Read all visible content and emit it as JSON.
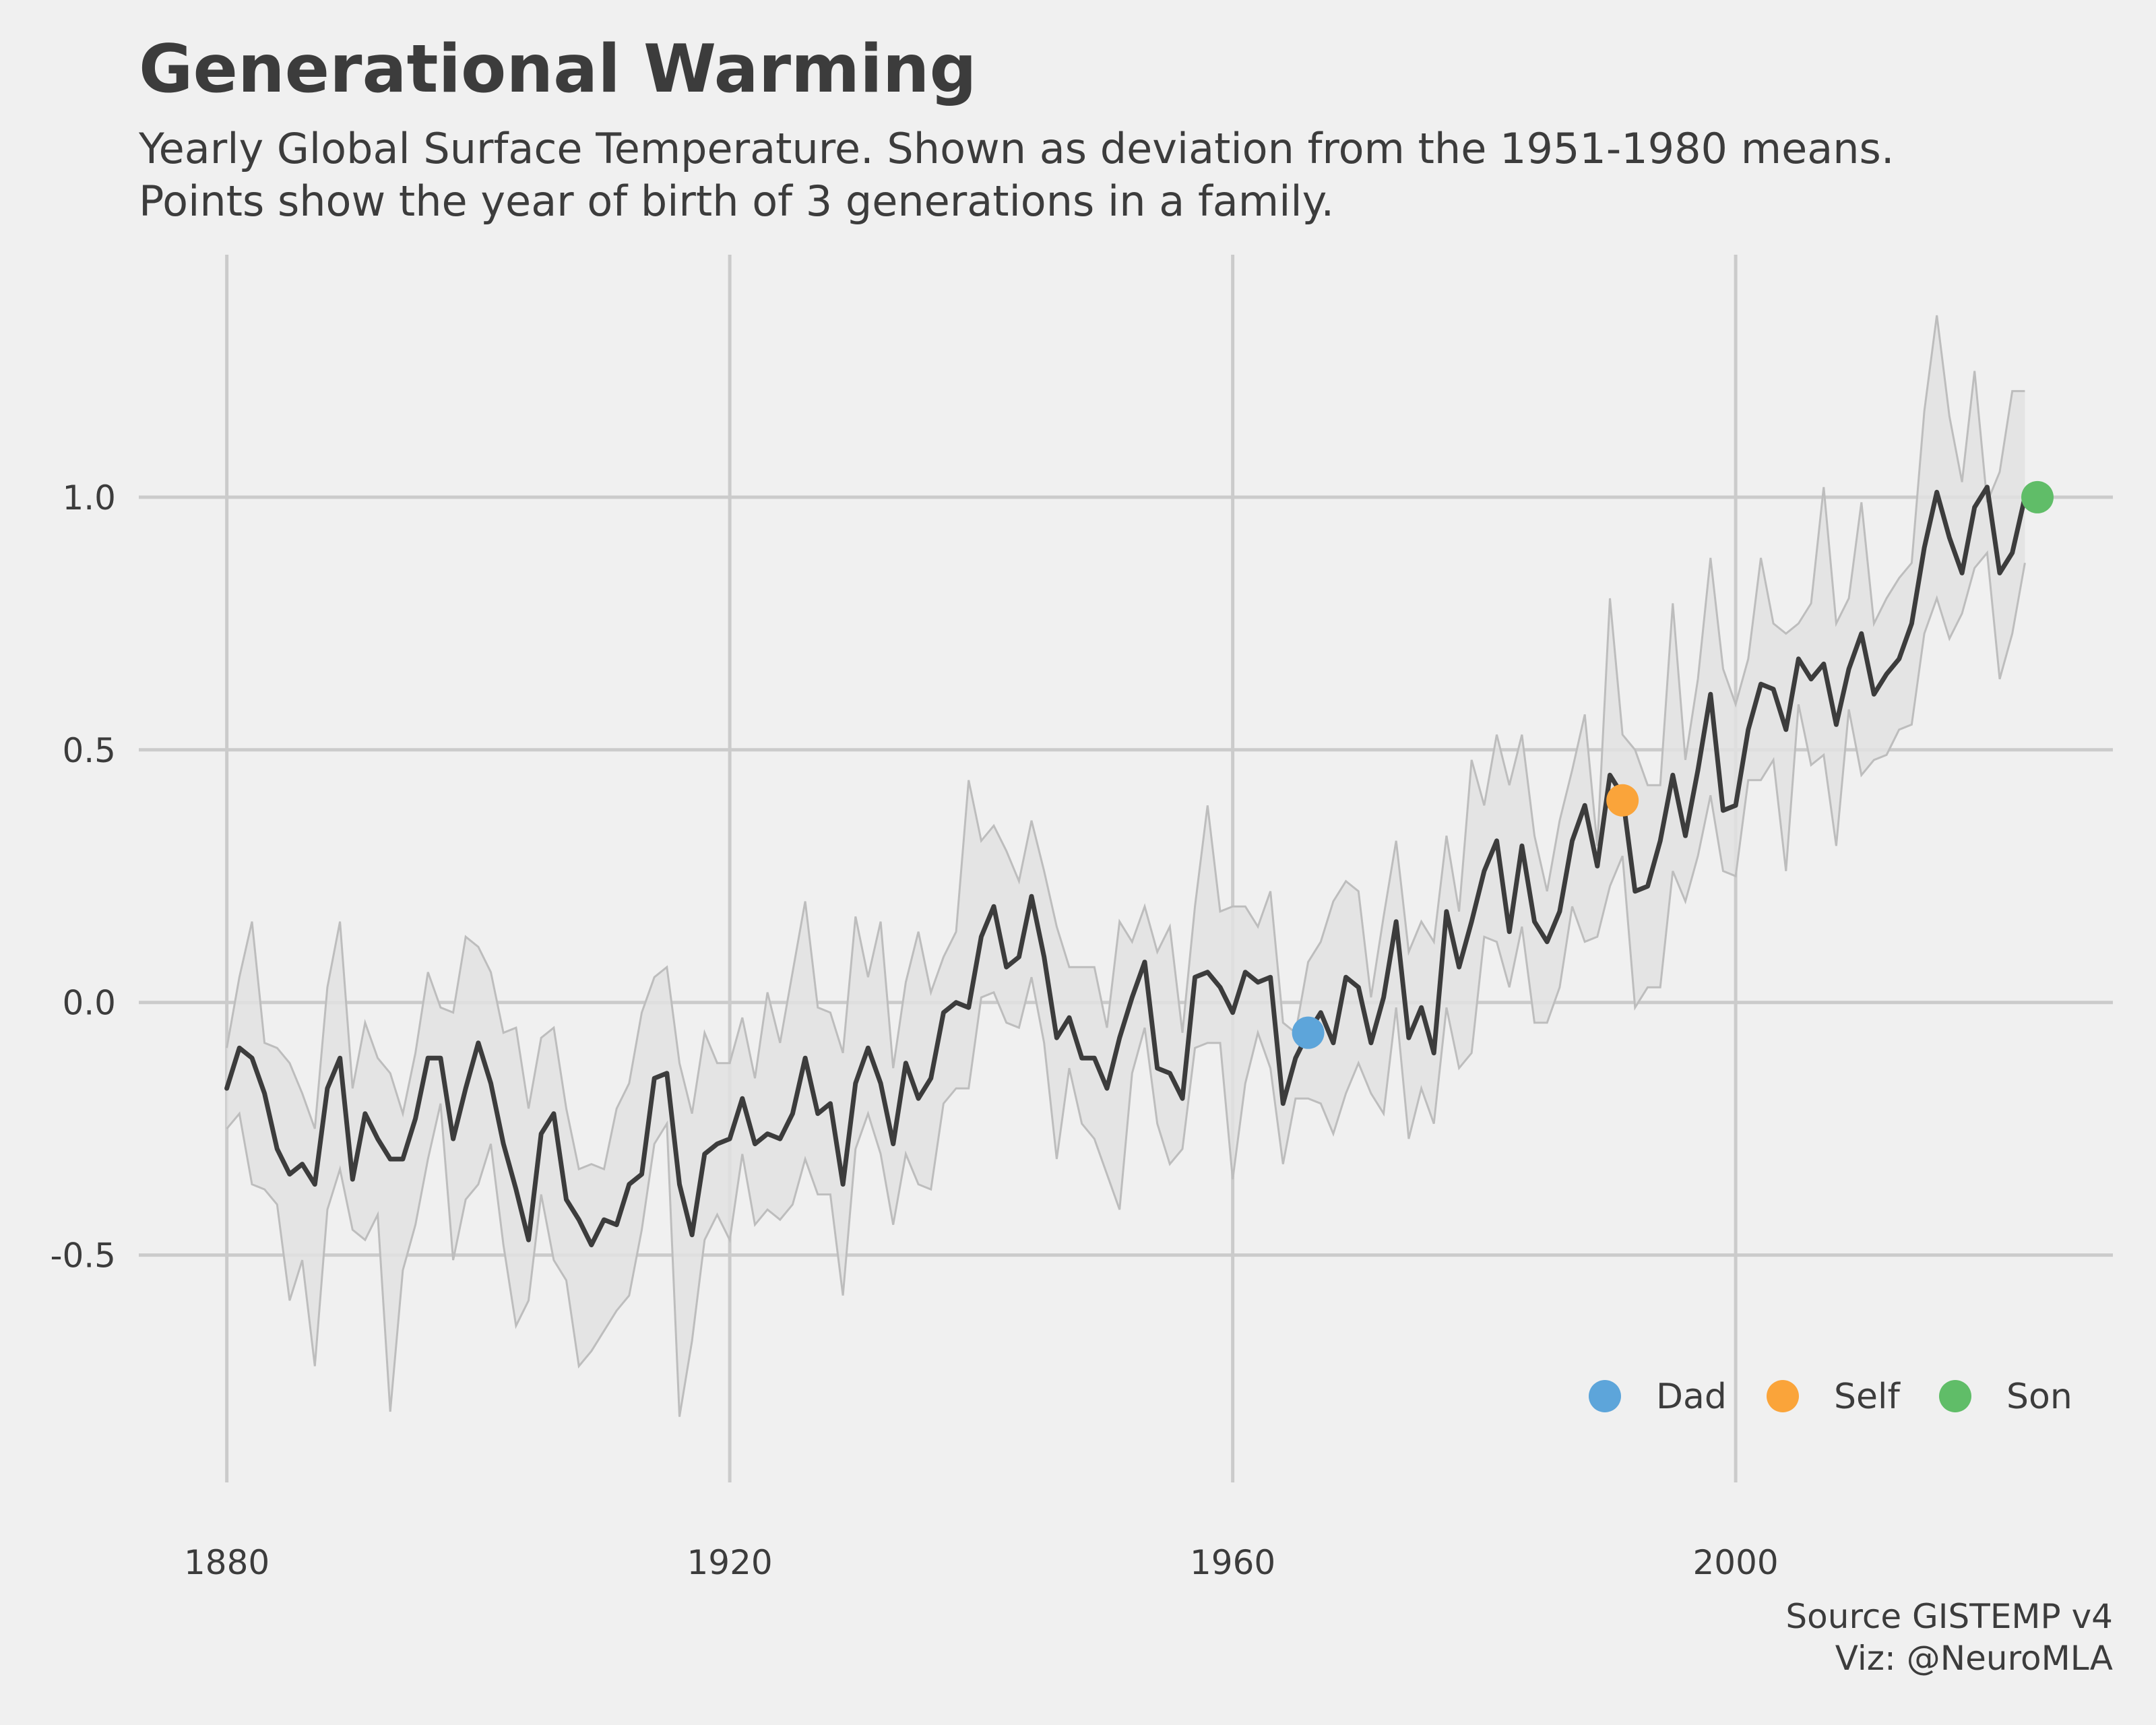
{
  "title": "Generational Warming",
  "subtitle_lines": [
    "Yearly Global Surface Temperature. Shown as deviation from the 1951-1980 means.",
    "Points show the year of birth of 3 generations in a family."
  ],
  "source_lines": [
    "Source GISTEMP v4",
    "Viz: @NeuroMLA"
  ],
  "colors": {
    "background": "#f0f0f0",
    "grid": "#cbcbcb",
    "line": "#3c3c3c",
    "band_fill": "#e2e2e2",
    "band_edge": "#bdbdbd",
    "text": "#3c3c3c"
  },
  "chart_data": {
    "type": "line",
    "title": "Generational Warming",
    "xlabel": "",
    "ylabel": "",
    "xlim": [
      1873,
      2030
    ],
    "ylim": [
      -0.95,
      1.48
    ],
    "x_ticks": [
      1880,
      1920,
      1960,
      2000
    ],
    "y_ticks": [
      -0.5,
      0.0,
      0.5,
      1.0
    ],
    "y_tick_labels": [
      "-0.5",
      "0.0",
      "0.5",
      "1.0"
    ],
    "grid": true,
    "x_start": 1880,
    "series": [
      {
        "values": [
          -0.17,
          -0.09,
          -0.11,
          -0.18,
          -0.29,
          -0.34,
          -0.32,
          -0.36,
          -0.17,
          -0.11,
          -0.35,
          -0.22,
          -0.27,
          -0.31,
          -0.31,
          -0.23,
          -0.11,
          -0.11,
          -0.27,
          -0.17,
          -0.08,
          -0.16,
          -0.28,
          -0.37,
          -0.47,
          -0.26,
          -0.22,
          -0.39,
          -0.43,
          -0.48,
          -0.43,
          -0.44,
          -0.36,
          -0.34,
          -0.15,
          -0.14,
          -0.36,
          -0.46,
          -0.3,
          -0.28,
          -0.27,
          -0.19,
          -0.28,
          -0.26,
          -0.27,
          -0.22,
          -0.11,
          -0.22,
          -0.2,
          -0.36,
          -0.16,
          -0.09,
          -0.16,
          -0.28,
          -0.12,
          -0.19,
          -0.15,
          -0.02,
          0.0,
          -0.01,
          0.13,
          0.19,
          0.07,
          0.09,
          0.21,
          0.09,
          -0.07,
          -0.03,
          -0.11,
          -0.11,
          -0.17,
          -0.07,
          0.01,
          0.08,
          -0.13,
          -0.14,
          -0.19,
          0.05,
          0.06,
          0.03,
          -0.02,
          0.06,
          0.04,
          0.05,
          -0.2,
          -0.11,
          -0.06,
          -0.02,
          -0.08,
          0.05,
          0.03,
          -0.08,
          0.01,
          0.16,
          -0.07,
          -0.01,
          -0.1,
          0.18,
          0.07,
          0.16,
          0.26,
          0.32,
          0.14,
          0.31,
          0.16,
          0.12,
          0.18,
          0.32,
          0.39,
          0.27,
          0.45,
          0.41,
          0.22,
          0.23,
          0.32,
          0.45,
          0.33,
          0.46,
          0.61,
          0.38,
          0.39,
          0.54,
          0.63,
          0.62,
          0.54,
          0.68,
          0.64,
          0.67,
          0.55,
          0.66,
          0.73,
          0.61,
          0.65,
          0.68,
          0.75,
          0.9,
          1.01,
          0.92,
          0.85,
          0.98,
          1.02,
          0.85,
          0.89,
          1.0
        ]
      }
    ],
    "uncertainty_band": {
      "lower": [
        -0.25,
        -0.22,
        -0.36,
        -0.37,
        -0.4,
        -0.59,
        -0.51,
        -0.72,
        -0.41,
        -0.33,
        -0.45,
        -0.47,
        -0.42,
        -0.81,
        -0.53,
        -0.44,
        -0.31,
        -0.2,
        -0.51,
        -0.39,
        -0.36,
        -0.28,
        -0.48,
        -0.64,
        -0.59,
        -0.38,
        -0.51,
        -0.55,
        -0.72,
        -0.69,
        -0.65,
        -0.61,
        -0.58,
        -0.45,
        -0.28,
        -0.24,
        -0.82,
        -0.67,
        -0.47,
        -0.42,
        -0.47,
        -0.3,
        -0.44,
        -0.41,
        -0.43,
        -0.4,
        -0.31,
        -0.38,
        -0.38,
        -0.58,
        -0.29,
        -0.22,
        -0.3,
        -0.44,
        -0.3,
        -0.36,
        -0.37,
        -0.2,
        -0.17,
        -0.17,
        0.01,
        0.02,
        -0.04,
        -0.05,
        0.05,
        -0.08,
        -0.31,
        -0.13,
        -0.24,
        -0.27,
        -0.34,
        -0.41,
        -0.14,
        -0.05,
        -0.24,
        -0.32,
        -0.29,
        -0.09,
        -0.08,
        -0.08,
        -0.35,
        -0.16,
        -0.06,
        -0.13,
        -0.32,
        -0.19,
        -0.19,
        -0.2,
        -0.26,
        -0.18,
        -0.12,
        -0.18,
        -0.22,
        -0.01,
        -0.27,
        -0.17,
        -0.24,
        -0.01,
        -0.13,
        -0.1,
        0.13,
        0.12,
        0.03,
        0.15,
        -0.04,
        -0.04,
        0.03,
        0.19,
        0.12,
        0.13,
        0.23,
        0.29,
        -0.01,
        0.03,
        0.03,
        0.26,
        0.2,
        0.29,
        0.41,
        0.26,
        0.25,
        0.44,
        0.44,
        0.48,
        0.26,
        0.59,
        0.47,
        0.49,
        0.31,
        0.58,
        0.45,
        0.48,
        0.49,
        0.54,
        0.55,
        0.73,
        0.8,
        0.72,
        0.77,
        0.86,
        0.89,
        0.64,
        0.73,
        0.87
      ],
      "upper": [
        -0.09,
        0.05,
        0.16,
        -0.08,
        -0.09,
        -0.12,
        -0.18,
        -0.25,
        0.03,
        0.16,
        -0.17,
        -0.04,
        -0.11,
        -0.14,
        -0.22,
        -0.1,
        0.06,
        -0.01,
        -0.02,
        0.13,
        0.11,
        0.06,
        -0.06,
        -0.05,
        -0.21,
        -0.07,
        -0.05,
        -0.21,
        -0.33,
        -0.32,
        -0.33,
        -0.21,
        -0.16,
        -0.02,
        0.05,
        0.07,
        -0.12,
        -0.22,
        -0.06,
        -0.12,
        -0.12,
        -0.03,
        -0.15,
        0.02,
        -0.08,
        0.06,
        0.2,
        -0.01,
        -0.02,
        -0.1,
        0.17,
        0.05,
        0.16,
        -0.13,
        0.04,
        0.14,
        0.02,
        0.09,
        0.14,
        0.44,
        0.32,
        0.35,
        0.3,
        0.24,
        0.36,
        0.26,
        0.15,
        0.07,
        0.07,
        0.07,
        -0.05,
        0.16,
        0.12,
        0.19,
        0.1,
        0.15,
        -0.06,
        0.19,
        0.39,
        0.18,
        0.19,
        0.19,
        0.15,
        0.22,
        -0.04,
        -0.06,
        0.08,
        0.12,
        0.2,
        0.24,
        0.22,
        0.01,
        0.17,
        0.32,
        0.1,
        0.16,
        0.12,
        0.33,
        0.18,
        0.48,
        0.39,
        0.53,
        0.43,
        0.53,
        0.33,
        0.22,
        0.36,
        0.46,
        0.57,
        0.31,
        0.8,
        0.53,
        0.5,
        0.43,
        0.43,
        0.79,
        0.48,
        0.64,
        0.88,
        0.66,
        0.59,
        0.68,
        0.88,
        0.75,
        0.73,
        0.75,
        0.79,
        1.02,
        0.75,
        0.8,
        0.99,
        0.75,
        0.8,
        0.84,
        0.87,
        1.17,
        1.36,
        1.16,
        1.03,
        1.25,
        0.99,
        1.05,
        1.21,
        1.21
      ]
    },
    "highlight_points": [
      {
        "name": "Dad",
        "year": 1966,
        "value": -0.06,
        "color": "#5da5da"
      },
      {
        "name": "Self",
        "year": 1991,
        "value": 0.4,
        "color": "#faa43a"
      },
      {
        "name": "Son",
        "year": 2024,
        "value": 1.0,
        "color": "#60bd68"
      }
    ],
    "legend": {
      "position": "bottom-right",
      "entries": [
        "Dad",
        "Self",
        "Son"
      ]
    }
  }
}
